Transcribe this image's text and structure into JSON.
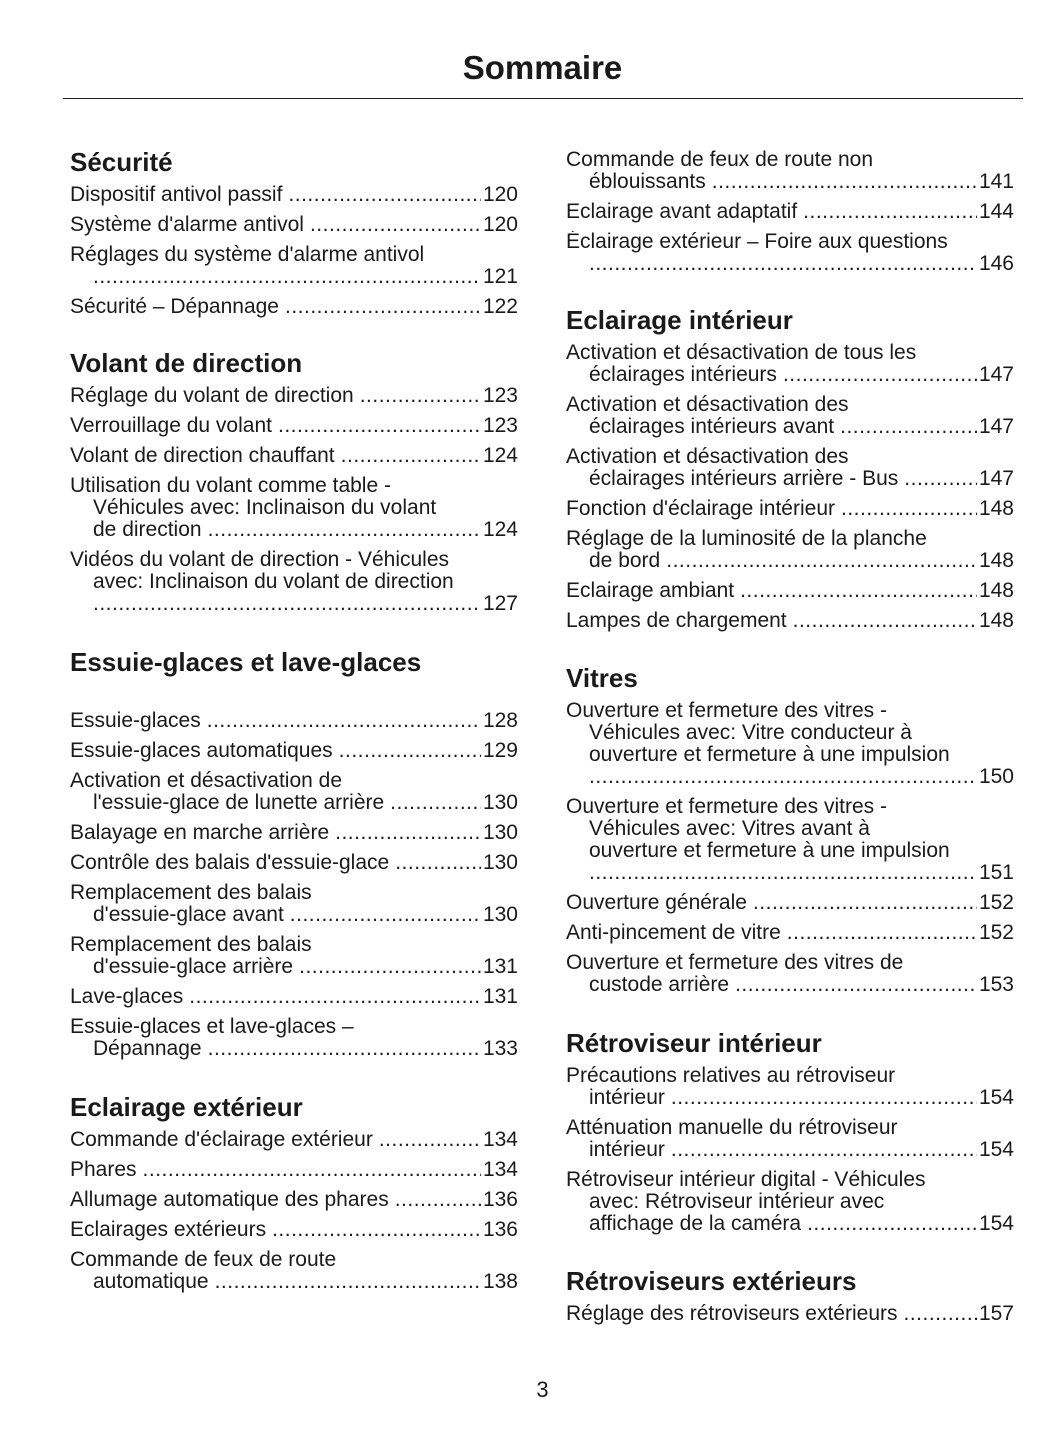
{
  "title": "Sommaire",
  "page_number": "3",
  "columns": [
    [
      {
        "heading": "Sécurité",
        "entries": [
          {
            "lines": [
              "Dispositif antivol passif"
            ],
            "page": "120"
          },
          {
            "lines": [
              "Système d'alarme antivol"
            ],
            "page": "120"
          },
          {
            "lines": [
              "Réglages du système d'alarme antivol",
              ""
            ],
            "page": "121"
          },
          {
            "lines": [
              "Sécurité – Dépannage"
            ],
            "page": "122"
          }
        ]
      },
      {
        "heading": "Volant de direction",
        "entries": [
          {
            "lines": [
              "Réglage du volant de direction"
            ],
            "page": "123"
          },
          {
            "lines": [
              "Verrouillage du volant"
            ],
            "page": "123"
          },
          {
            "lines": [
              "Volant de direction chauffant"
            ],
            "page": "124"
          },
          {
            "lines": [
              "Utilisation du volant comme table -",
              "Véhicules avec: Inclinaison du volant",
              "de direction"
            ],
            "page": "124"
          },
          {
            "lines": [
              "Vidéos du volant de direction - Véhicules",
              "avec: Inclinaison du volant de direction",
              ""
            ],
            "page": "127"
          }
        ]
      },
      {
        "heading": "Essuie-glaces et lave-glaces",
        "entries": [
          {
            "lines": [
              "Essuie-glaces"
            ],
            "page": "128"
          },
          {
            "lines": [
              "Essuie-glaces automatiques"
            ],
            "page": "129"
          },
          {
            "lines": [
              "Activation et désactivation de",
              "l'essuie-glace de lunette arrière"
            ],
            "page": "130"
          },
          {
            "lines": [
              "Balayage en marche arrière"
            ],
            "page": "130"
          },
          {
            "lines": [
              "Contrôle des balais d'essuie-glace"
            ],
            "page": "130"
          },
          {
            "lines": [
              "Remplacement des balais",
              "d'essuie-glace avant"
            ],
            "page": "130"
          },
          {
            "lines": [
              "Remplacement des balais",
              "d'essuie-glace arrière"
            ],
            "page": "131"
          },
          {
            "lines": [
              "Lave-glaces"
            ],
            "page": "131"
          },
          {
            "lines": [
              "Essuie-glaces et lave-glaces –",
              "Dépannage"
            ],
            "page": "133"
          }
        ]
      },
      {
        "heading": "Eclairage extérieur",
        "entries": [
          {
            "lines": [
              "Commande d'éclairage extérieur"
            ],
            "page": "134"
          },
          {
            "lines": [
              "Phares"
            ],
            "page": "134"
          },
          {
            "lines": [
              "Allumage automatique des phares"
            ],
            "page": "136"
          },
          {
            "lines": [
              "Eclairages extérieurs"
            ],
            "page": "136"
          },
          {
            "lines": [
              "Commande de feux de route",
              "automatique"
            ],
            "page": "138"
          }
        ]
      }
    ],
    [
      {
        "heading": "",
        "entries": [
          {
            "lines": [
              "Commande de feux de route non",
              "éblouissants"
            ],
            "page": "141"
          },
          {
            "lines": [
              "Eclairage avant adaptatif"
            ],
            "page": "144"
          },
          {
            "lines": [
              "Éclairage extérieur – Foire aux questions",
              ""
            ],
            "page": "146"
          }
        ]
      },
      {
        "heading": "Eclairage intérieur",
        "entries": [
          {
            "lines": [
              "Activation et désactivation de tous les",
              "éclairages intérieurs"
            ],
            "page": "147"
          },
          {
            "lines": [
              "Activation et désactivation des",
              "éclairages intérieurs avant"
            ],
            "page": "147"
          },
          {
            "lines": [
              "Activation et désactivation des",
              "éclairages intérieurs arrière - Bus"
            ],
            "page": "147"
          },
          {
            "lines": [
              "Fonction d'éclairage intérieur"
            ],
            "page": "148"
          },
          {
            "lines": [
              "Réglage de la luminosité de la planche",
              "de bord"
            ],
            "page": "148"
          },
          {
            "lines": [
              "Eclairage ambiant"
            ],
            "page": "148"
          },
          {
            "lines": [
              "Lampes de chargement"
            ],
            "page": "148"
          }
        ]
      },
      {
        "heading": "Vitres",
        "entries": [
          {
            "lines": [
              "Ouverture et fermeture des vitres -",
              "Véhicules avec: Vitre conducteur à",
              "ouverture et fermeture à une impulsion",
              ""
            ],
            "page": "150"
          },
          {
            "lines": [
              "Ouverture et fermeture des vitres -",
              "Véhicules avec: Vitres avant à",
              "ouverture et fermeture à une impulsion",
              ""
            ],
            "page": "151"
          },
          {
            "lines": [
              "Ouverture générale"
            ],
            "page": "152"
          },
          {
            "lines": [
              "Anti-pincement de vitre"
            ],
            "page": "152"
          },
          {
            "lines": [
              "Ouverture et fermeture des vitres de",
              "custode arrière"
            ],
            "page": "153"
          }
        ]
      },
      {
        "heading": "Rétroviseur intérieur",
        "entries": [
          {
            "lines": [
              "Précautions relatives au rétroviseur",
              "intérieur"
            ],
            "page": "154"
          },
          {
            "lines": [
              "Atténuation manuelle du rétroviseur",
              "intérieur"
            ],
            "page": "154"
          },
          {
            "lines": [
              "Rétroviseur intérieur digital - Véhicules",
              "avec: Rétroviseur intérieur avec",
              "affichage de la caméra"
            ],
            "page": "154"
          }
        ]
      },
      {
        "heading": "Rétroviseurs extérieurs",
        "entries": [
          {
            "lines": [
              "Réglage des rétroviseurs extérieurs"
            ],
            "page": "157"
          }
        ]
      }
    ]
  ]
}
